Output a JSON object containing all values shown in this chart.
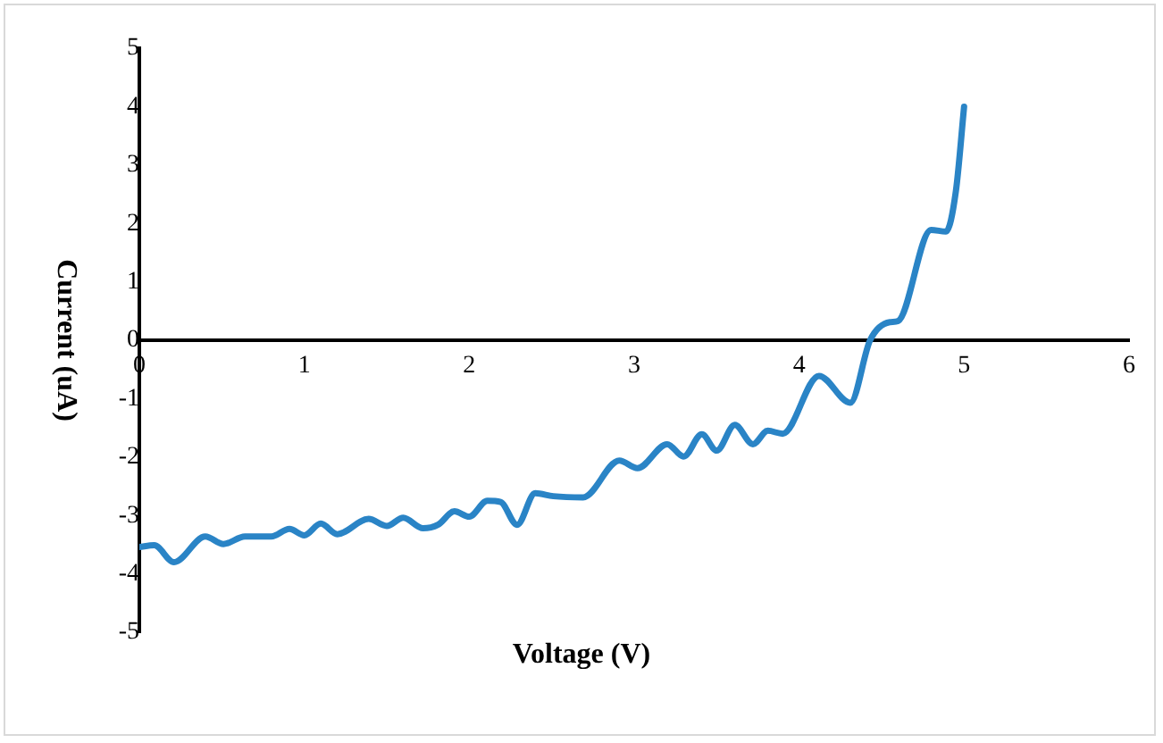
{
  "chart_data": {
    "type": "line",
    "xlabel": "Voltage (V)",
    "ylabel": "Current (uA)",
    "x": [
      0,
      0.09,
      0.21,
      0.4,
      0.51,
      0.64,
      0.8,
      0.91,
      1.0,
      1.1,
      1.2,
      1.39,
      1.5,
      1.6,
      1.72,
      1.81,
      1.91,
      2.0,
      2.11,
      2.19,
      2.29,
      2.4,
      2.51,
      2.69,
      2.91,
      3.02,
      3.2,
      3.3,
      3.41,
      3.5,
      3.61,
      3.72,
      3.81,
      3.9,
      4.12,
      4.31,
      4.43,
      4.55,
      4.6,
      4.8,
      4.89,
      4.95,
      5.0
    ],
    "series": [
      {
        "color": "#2a84c6",
        "values": [
          -3.54,
          -3.51,
          -3.8,
          -3.36,
          -3.49,
          -3.36,
          -3.36,
          -3.23,
          -3.34,
          -3.14,
          -3.32,
          -3.06,
          -3.18,
          -3.04,
          -3.22,
          -3.16,
          -2.93,
          -3.02,
          -2.75,
          -2.77,
          -3.16,
          -2.62,
          -2.67,
          -2.69,
          -2.06,
          -2.19,
          -1.78,
          -1.99,
          -1.61,
          -1.89,
          -1.45,
          -1.78,
          -1.55,
          -1.6,
          -0.61,
          -1.07,
          0,
          0.31,
          0.33,
          1.89,
          1.86,
          2.55,
          4.0
        ]
      }
    ],
    "xlim": [
      0,
      6
    ],
    "xticks": [
      0,
      1,
      2,
      3,
      4,
      5,
      6
    ],
    "ylim": [
      -5,
      5
    ],
    "yticks": [
      -5,
      -4,
      -3,
      -2,
      -1,
      0,
      1,
      2,
      3,
      4,
      5
    ],
    "grid": false,
    "legend": false,
    "marker": "none",
    "line_style": "solid"
  }
}
